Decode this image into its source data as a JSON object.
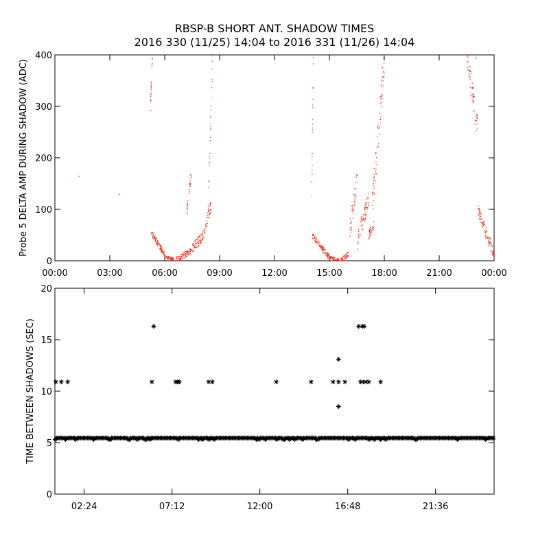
{
  "title": {
    "line1": "RBSP-B SHORT ANT. SHADOW TIMES",
    "line2": "2016 330 (11/25) 14:04 to 2016 331 (11/26) 14:04"
  },
  "colors": {
    "points": "#e8321e",
    "stars": "#000000",
    "axes": "#000000"
  },
  "chart_data": [
    {
      "type": "scatter",
      "ylabel": "Probe 5 DELTA AMP DURING SHADOW (ADC)",
      "xlabel": "",
      "xlim": [
        0,
        24
      ],
      "ylim": [
        0,
        400
      ],
      "xticks": [
        0,
        3,
        6,
        9,
        12,
        15,
        18,
        21,
        24
      ],
      "xtick_labels": [
        "00:00",
        "03:00",
        "06:00",
        "09:00",
        "12:00",
        "15:00",
        "18:00",
        "21:00",
        "00:00"
      ],
      "yticks": [
        0,
        100,
        200,
        300,
        400
      ],
      "ytick_labels": [
        "0",
        "100",
        "200",
        "300",
        "400"
      ],
      "grid": false,
      "marker": "dot",
      "series": [
        {
          "segments": [
            {
              "t0": 5.25,
              "t1": 6.05,
              "v0": 55,
              "v1": 8,
              "spread": 6
            },
            {
              "t0": 6.05,
              "t1": 6.5,
              "v0": 8,
              "v1": 3,
              "spread": 3
            },
            {
              "t0": 6.6,
              "t1": 7.4,
              "v0": 2,
              "v1": 20,
              "spread": 6
            },
            {
              "t0": 7.45,
              "t1": 8.1,
              "v0": 25,
              "v1": 50,
              "spread": 10
            },
            {
              "t0": 8.1,
              "t1": 8.5,
              "v0": 50,
              "v1": 110,
              "spread": 12
            },
            {
              "t0": 8.35,
              "t1": 8.6,
              "v0": 110,
              "v1": 400,
              "spread": 20
            },
            {
              "t0": 7.2,
              "t1": 7.45,
              "v0": 100,
              "v1": 180,
              "spread": 10
            },
            {
              "t0": 5.2,
              "t1": 5.3,
              "v0": 300,
              "v1": 400,
              "spread": 15
            },
            {
              "t0": 14.05,
              "t1": 14.95,
              "v0": 50,
              "v1": 8,
              "spread": 6
            },
            {
              "t0": 14.95,
              "t1": 15.5,
              "v0": 8,
              "v1": 2,
              "spread": 3
            },
            {
              "t0": 15.6,
              "t1": 16.05,
              "v0": 2,
              "v1": 15,
              "spread": 5
            },
            {
              "t0": 16.1,
              "t1": 16.5,
              "v0": 60,
              "v1": 160,
              "spread": 20
            },
            {
              "t0": 16.5,
              "t1": 17.1,
              "v0": 40,
              "v1": 120,
              "spread": 18
            },
            {
              "t0": 17.1,
              "t1": 17.4,
              "v0": 50,
              "v1": 70,
              "spread": 10
            },
            {
              "t0": 17.3,
              "t1": 18.0,
              "v0": 100,
              "v1": 400,
              "spread": 30
            },
            {
              "t0": 14.0,
              "t1": 14.1,
              "v0": 100,
              "v1": 400,
              "spread": 20
            },
            {
              "t0": 22.5,
              "t1": 23.1,
              "v0": 400,
              "v1": 250,
              "spread": 25
            },
            {
              "t0": 23.1,
              "t1": 23.9,
              "v0": 100,
              "v1": 20,
              "spread": 12
            },
            {
              "t0": 23.9,
              "t1": 24.0,
              "v0": 20,
              "v1": 8,
              "spread": 5
            }
          ],
          "isolated": [
            {
              "t": 1.3,
              "v": 165
            },
            {
              "t": 3.5,
              "v": 130
            },
            {
              "t": 23.0,
              "v": 395
            }
          ]
        }
      ]
    },
    {
      "type": "scatter",
      "ylabel": "TIME BETWEEN SHADOWS (SEC)",
      "xlabel": "",
      "xlim": [
        0,
        24
      ],
      "ylim": [
        0,
        20
      ],
      "xticks": [
        1.6,
        6.4,
        11.2,
        16.0,
        20.8
      ],
      "xtick_labels": [
        "02:24",
        "07:12",
        "12:00",
        "16:48",
        "21:36"
      ],
      "yticks": [
        0,
        5,
        10,
        15,
        20
      ],
      "ytick_labels": [
        "0",
        "5",
        "10",
        "15",
        "20"
      ],
      "grid": false,
      "marker": "star",
      "baseline": {
        "value": 5.45,
        "t0": 0,
        "t1": 24,
        "step": 0.07
      },
      "points": [
        {
          "t": 0.05,
          "v": 10.9
        },
        {
          "t": 0.35,
          "v": 10.9
        },
        {
          "t": 0.7,
          "v": 10.9
        },
        {
          "t": 5.3,
          "v": 10.9
        },
        {
          "t": 5.4,
          "v": 16.3
        },
        {
          "t": 6.6,
          "v": 10.9
        },
        {
          "t": 6.7,
          "v": 10.9
        },
        {
          "t": 6.8,
          "v": 10.9
        },
        {
          "t": 8.4,
          "v": 10.9
        },
        {
          "t": 8.6,
          "v": 10.9
        },
        {
          "t": 12.1,
          "v": 10.9
        },
        {
          "t": 14.0,
          "v": 10.9
        },
        {
          "t": 15.2,
          "v": 10.9
        },
        {
          "t": 15.5,
          "v": 10.9
        },
        {
          "t": 15.5,
          "v": 13.1
        },
        {
          "t": 15.5,
          "v": 8.5
        },
        {
          "t": 15.85,
          "v": 10.9
        },
        {
          "t": 16.6,
          "v": 16.3
        },
        {
          "t": 16.8,
          "v": 16.3
        },
        {
          "t": 16.9,
          "v": 16.3
        },
        {
          "t": 16.7,
          "v": 10.9
        },
        {
          "t": 16.85,
          "v": 10.9
        },
        {
          "t": 17.0,
          "v": 10.9
        },
        {
          "t": 17.15,
          "v": 10.9
        },
        {
          "t": 17.8,
          "v": 10.9
        }
      ]
    }
  ]
}
